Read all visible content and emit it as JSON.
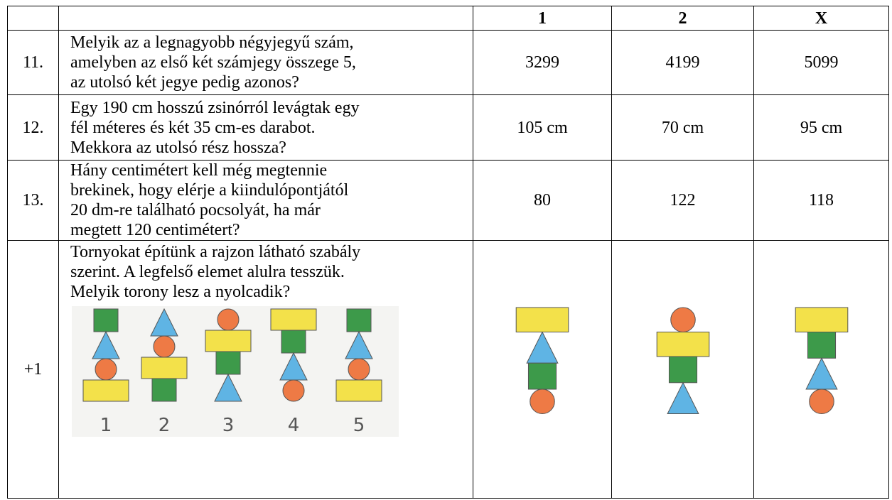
{
  "table": {
    "options": [
      "1",
      "2",
      "X"
    ],
    "rows": [
      {
        "number": "11.",
        "question": [
          "Melyik az a legnagyobb négyjegyű szám,",
          "amelyben az első két számjegy összege 5,",
          "az utolsó két jegye pedig azonos?"
        ],
        "answers": [
          "3299",
          "4199",
          "5099"
        ]
      },
      {
        "number": "12.",
        "question": [
          "Egy 190 cm hosszú zsinórról levágtak egy",
          "fél méteres és két 35 cm-es darabot.",
          "Mekkora az utolsó rész hossza?"
        ],
        "answers": [
          "105 cm",
          "70 cm",
          "95 cm"
        ]
      },
      {
        "number": "13.",
        "question": [
          "Hány centimétert kell még megtennie",
          "brekinek, hogy elérje a kiindulópontjától",
          "20 dm-re található pocsolyát, ha már",
          "megtett 120 centimétert?"
        ],
        "answers": [
          "80",
          "122",
          "118"
        ]
      },
      {
        "number": "+1",
        "question": [
          "Tornyokat építünk a rajzon látható szabály",
          "szerint. A legfelső elemet alulra tesszük.",
          "Melyik torony lesz a nyolcadik?"
        ],
        "figure_labels": [
          "1",
          "2",
          "3",
          "4",
          "5"
        ]
      }
    ]
  }
}
